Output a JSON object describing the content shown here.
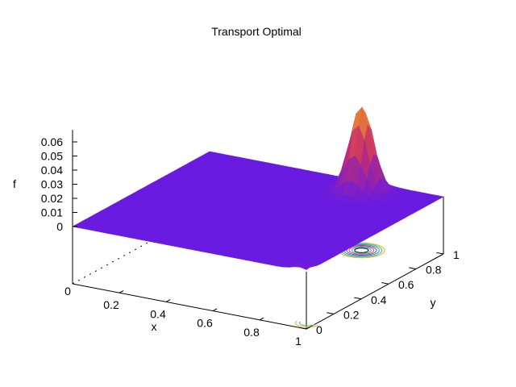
{
  "chart_data": {
    "type": "surface3d",
    "title": "Transport Optimal",
    "xlabel": "x",
    "ylabel": "y",
    "zlabel": "f",
    "x_ticks": [
      "0.2",
      "0.4",
      "0.6",
      "0.8",
      "1"
    ],
    "y_ticks": [
      "0",
      "0.2",
      "0.4",
      "0.6",
      "0.8",
      "1"
    ],
    "z_ticks": [
      "0",
      "0.01",
      "0.02",
      "0.03",
      "0.04",
      "0.05",
      "0.06"
    ],
    "corner_label": "0",
    "xlim": [
      0,
      1
    ],
    "ylim": [
      0,
      1
    ],
    "zlim": [
      0,
      0.065
    ],
    "base_value": 0,
    "peaks": [
      {
        "x": 0.72,
        "y": 0.88,
        "height": 0.062,
        "width": 0.045
      },
      {
        "x": 0.97,
        "y": 0.02,
        "height": 0.003,
        "width": 0.03
      }
    ],
    "surface_colors": {
      "low": "#6a1be0",
      "mid": "#c82e6a",
      "high": "#f7a81a"
    },
    "contour_colors": [
      "#f5a623",
      "#2ecc71",
      "#1e90ff",
      "#8e44ad",
      "#e74c3c",
      "#00bcd4",
      "#000000"
    ]
  }
}
